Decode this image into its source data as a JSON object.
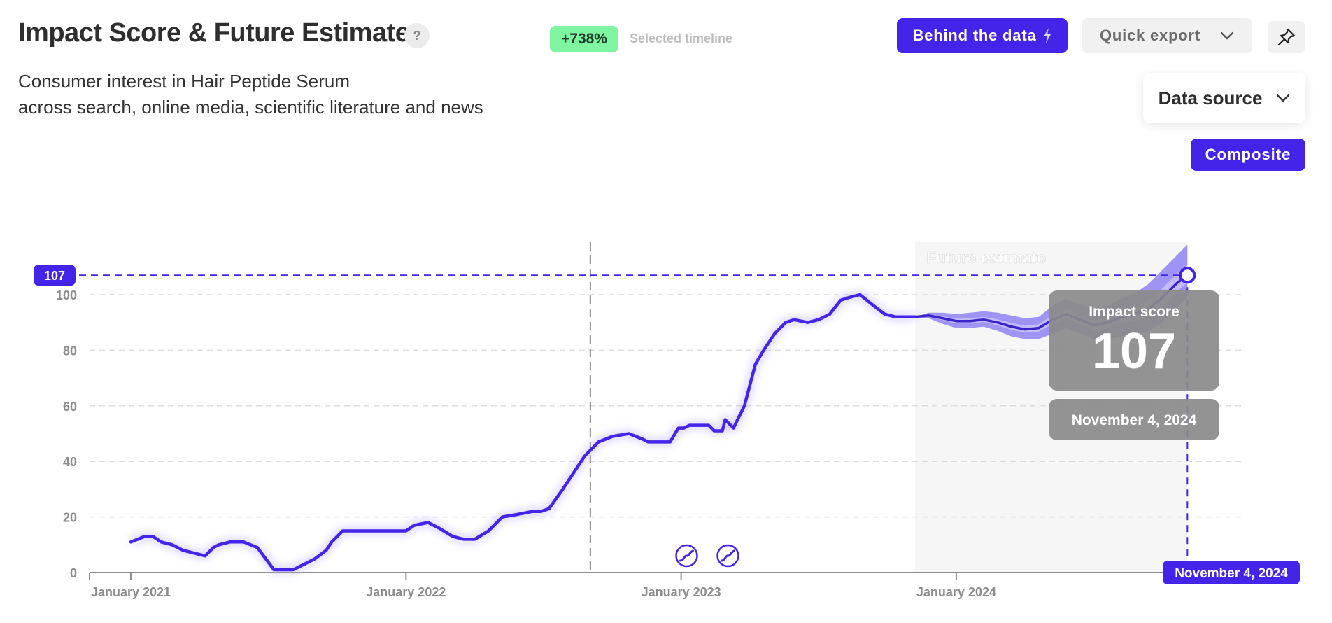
{
  "header": {
    "title": "Impact Score & Future Estimate",
    "help_label": "?",
    "change_badge": "+738%",
    "change_label": "Selected timeline",
    "subtitle_line1": "Consumer interest in Hair Peptide Serum",
    "subtitle_line2": "across search, online media, scientific literature and news"
  },
  "toolbar": {
    "behind_label": "Behind the data",
    "export_label": "Quick export",
    "data_source_label": "Data source",
    "composite_label": "Composite"
  },
  "colors": {
    "accent": "#4324e8",
    "badge_green": "#7ff5a1",
    "forecast_band": "#8f82f2",
    "forecast_inner": "#c6beff",
    "tooltip_bg": "#8a8a8a"
  },
  "icons": {
    "help": "question-icon",
    "behind": "lightning-icon",
    "export": "chevron-down-icon",
    "pin": "pin-icon",
    "data_source": "chevron-down-icon",
    "events": "trend-up-icon"
  },
  "tooltip": {
    "label": "Impact score",
    "value": "107",
    "date": "November 4, 2024"
  },
  "chart_data": {
    "type": "line",
    "title": "Impact Score & Future Estimate",
    "xlabel": "",
    "ylabel": "",
    "ylim": [
      0,
      110
    ],
    "yticks": [
      0,
      20,
      40,
      60,
      80,
      100
    ],
    "xticks": [
      {
        "label": "January 2021",
        "value": 2021.0
      },
      {
        "label": "January 2022",
        "value": 2022.0
      },
      {
        "label": "January 2023",
        "value": 2023.0
      },
      {
        "label": "January 2024",
        "value": 2024.0
      }
    ],
    "xlim": [
      2020.85,
      2025.04
    ],
    "grid": true,
    "future_region_label": "Future estimate",
    "future_region_start": 2023.85,
    "selected_marker": 2022.67,
    "crosshair": {
      "x": 2024.84,
      "y": 107,
      "y_label": "107",
      "x_label": "November 4, 2024"
    },
    "event_markers": [
      2023.02,
      2023.17
    ],
    "series": [
      {
        "kind": "actual",
        "x": [
          2021.0,
          2021.05,
          2021.08,
          2021.11,
          2021.15,
          2021.19,
          2021.23,
          2021.27,
          2021.3,
          2021.32,
          2021.36,
          2021.41,
          2021.46,
          2021.49,
          2021.52,
          2021.56,
          2021.59,
          2021.63,
          2021.67,
          2021.71,
          2021.73,
          2021.77,
          2021.81,
          2021.85,
          2021.89,
          2021.94,
          2022.0,
          2022.03,
          2022.08,
          2022.12,
          2022.17,
          2022.21,
          2022.25,
          2022.3,
          2022.35,
          2022.41,
          2022.46,
          2022.49,
          2022.52,
          2022.57,
          2022.61,
          2022.65,
          2022.7,
          2022.75,
          2022.81,
          2022.86,
          2022.88,
          2022.93,
          2022.96,
          2022.99,
          2023.01,
          2023.03,
          2023.06,
          2023.1,
          2023.12,
          2023.15,
          2023.16,
          2023.19,
          2023.23,
          2023.27,
          2023.3,
          2023.34,
          2023.38,
          2023.41,
          2023.46,
          2023.5,
          2023.54,
          2023.58,
          2023.61,
          2023.65,
          2023.7,
          2023.74,
          2023.78,
          2023.82,
          2023.85
        ],
        "y": [
          11,
          13,
          13,
          11,
          10,
          8,
          7,
          6,
          9,
          10,
          11,
          11,
          9,
          5,
          1,
          1,
          1,
          3,
          5,
          8,
          11,
          15,
          15,
          15,
          15,
          15,
          15,
          17,
          18,
          16,
          13,
          12,
          12,
          15,
          20,
          21,
          22,
          22,
          23,
          30,
          36,
          42,
          47,
          49,
          50,
          48,
          47,
          47,
          47,
          52,
          52,
          53,
          53,
          53,
          51,
          51,
          55,
          52,
          60,
          75,
          80,
          86,
          90,
          91,
          90,
          91,
          93,
          98,
          99,
          100,
          96,
          93,
          92,
          92,
          92
        ]
      },
      {
        "kind": "forecast",
        "x": [
          2023.85,
          2023.9,
          2023.95,
          2024.0,
          2024.05,
          2024.1,
          2024.15,
          2024.2,
          2024.25,
          2024.3,
          2024.35,
          2024.4,
          2024.45,
          2024.5,
          2024.55,
          2024.6,
          2024.65,
          2024.7,
          2024.75,
          2024.8,
          2024.84
        ],
        "y": [
          92,
          92.5,
          91.5,
          90.5,
          90.5,
          91,
          90,
          88.5,
          87.5,
          88,
          91,
          93,
          91,
          89,
          90,
          92,
          93,
          95,
          99,
          104,
          107
        ],
        "lower": [
          92,
          91.5,
          89.5,
          88,
          88,
          88.5,
          87,
          85,
          84,
          84,
          86,
          88,
          86,
          84,
          84,
          85,
          86,
          87,
          90,
          95,
          99
        ],
        "upper": [
          92,
          93.5,
          93.5,
          93,
          93.5,
          94,
          93.5,
          92.5,
          91.5,
          92,
          96,
          98.5,
          96.5,
          94.5,
          96,
          98.5,
          100.5,
          104,
          109,
          114,
          118
        ]
      }
    ]
  }
}
